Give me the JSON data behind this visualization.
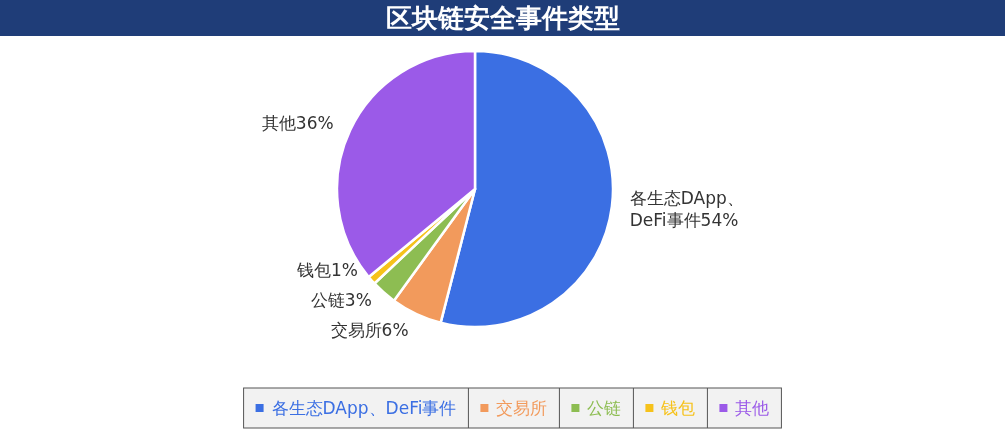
{
  "chart_data": {
    "type": "pie",
    "title": "区块链安全事件类型",
    "categories": [
      "各生态DApp、DeFi事件",
      "交易所",
      "公链",
      "钱包",
      "其他"
    ],
    "values": [
      54,
      6,
      3,
      1,
      36
    ],
    "value_labels": [
      "54%",
      "6%",
      "3%",
      "1%",
      "36%"
    ],
    "colors": [
      "#3b6fe3",
      "#f29a5c",
      "#8dbd52",
      "#f6c21b",
      "#9b5ae8"
    ],
    "legend": "bottom"
  }
}
